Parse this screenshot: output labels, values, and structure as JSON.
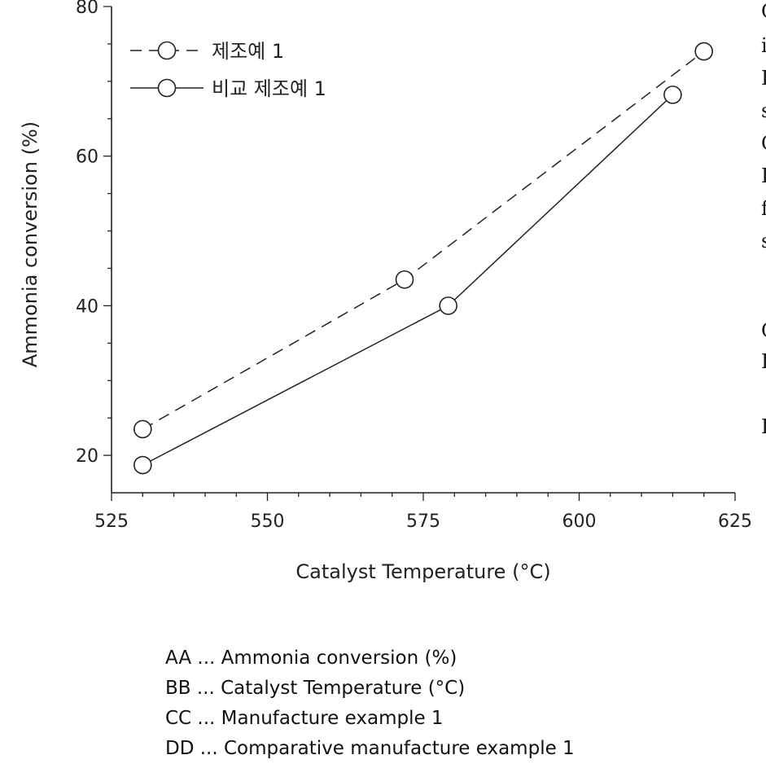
{
  "chart_data": {
    "type": "line",
    "xlabel": "Catalyst Temperature (°C)",
    "ylabel": "Ammonia conversion (%)",
    "xlim": [
      525,
      625
    ],
    "ylim": [
      15,
      80
    ],
    "x_ticks": [
      "525",
      "550",
      "575",
      "600",
      "625"
    ],
    "y_ticks": [
      "20",
      "40",
      "60",
      "80"
    ],
    "legend_position": "top-left",
    "grid": false,
    "series": [
      {
        "name": "제조예 1",
        "style": "dashed",
        "marker": "open-circle",
        "points": [
          {
            "x": 530,
            "y": 23.5
          },
          {
            "x": 572,
            "y": 43.5
          },
          {
            "x": 620,
            "y": 74
          }
        ]
      },
      {
        "name": "비교 제조예 1",
        "style": "solid",
        "marker": "open-circle",
        "points": [
          {
            "x": 530,
            "y": 18.7
          },
          {
            "x": 579,
            "y": 40
          },
          {
            "x": 615,
            "y": 68.2
          }
        ]
      }
    ]
  },
  "side_letters": [
    "C",
    "i",
    "I",
    "s",
    "C",
    "I",
    "f",
    "s",
    "C",
    "I",
    "I"
  ],
  "notes": [
    "AA ... Ammonia conversion (%)",
    "BB ... Catalyst Temperature (°C)",
    "CC ... Manufacture example 1",
    "DD ... Comparative manufacture example 1"
  ],
  "colors": {
    "line": "#222222",
    "background": "#ffffff"
  }
}
